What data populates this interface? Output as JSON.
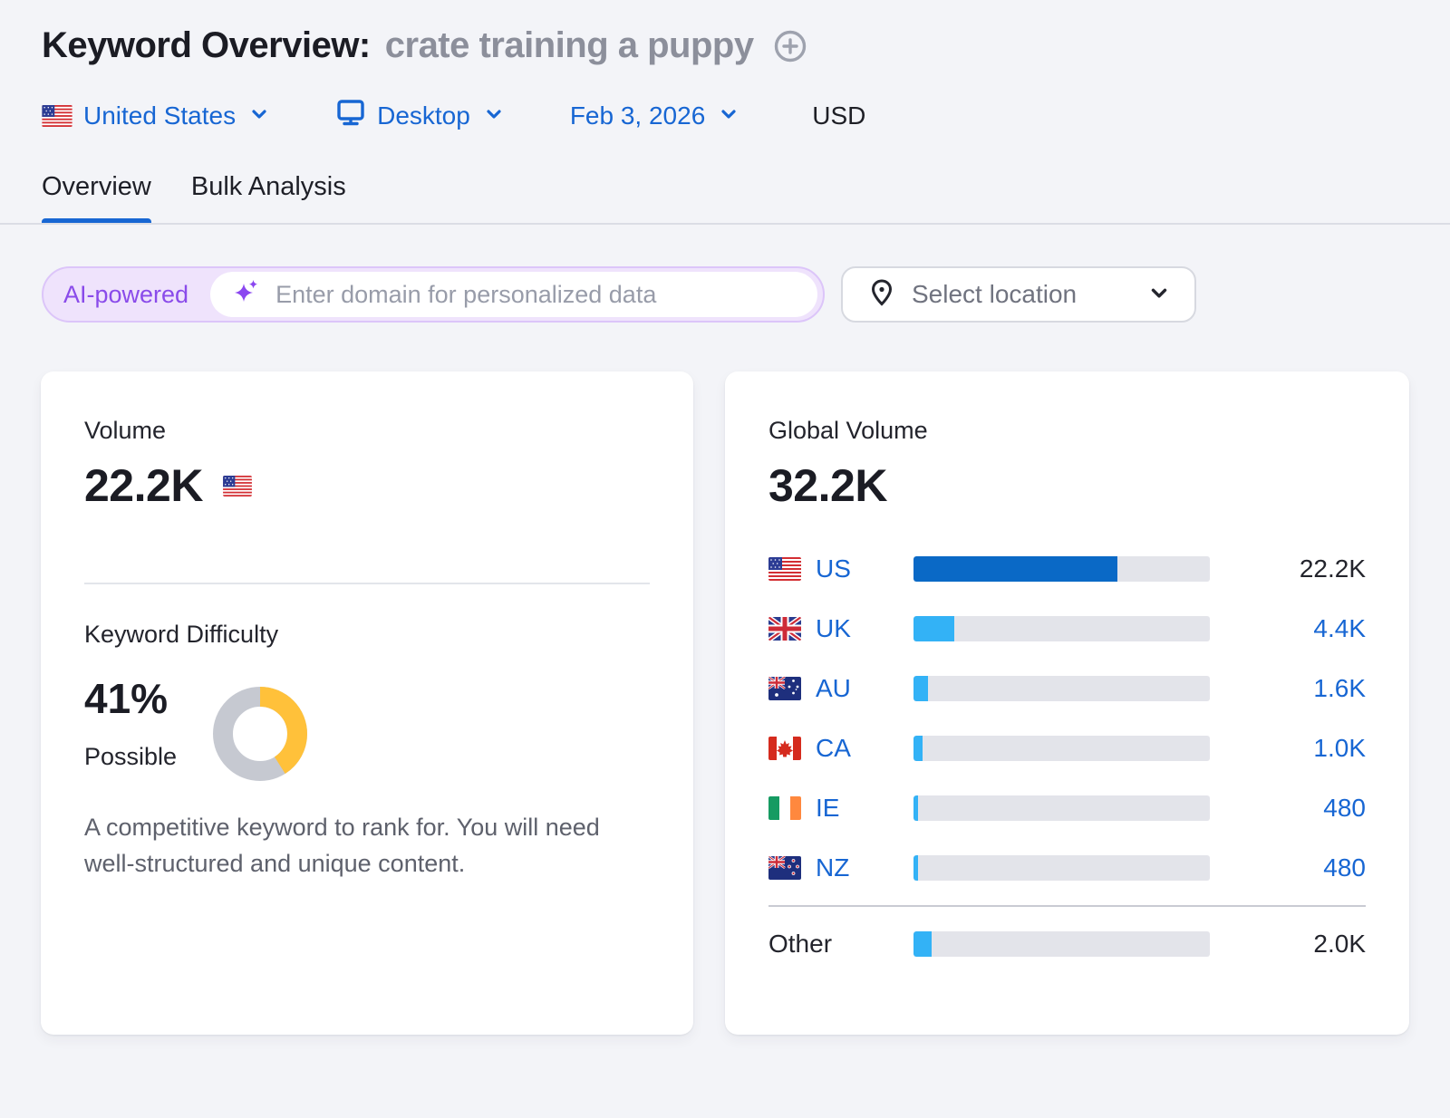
{
  "header": {
    "title": "Keyword Overview:",
    "keyword": "crate training a puppy",
    "filters": {
      "country": "United States",
      "device": "Desktop",
      "date": "Feb 3, 2026",
      "currency": "USD"
    },
    "tabs": [
      {
        "label": "Overview",
        "active": true
      },
      {
        "label": "Bulk Analysis",
        "active": false
      }
    ]
  },
  "controls": {
    "ai_badge": "AI-powered",
    "domain_placeholder": "Enter domain for personalized data",
    "domain_value": "",
    "location_button": "Select location"
  },
  "volume_card": {
    "label": "Volume",
    "value": "22.2K",
    "kd_label": "Keyword Difficulty",
    "kd_percent": "41%",
    "kd_percent_value": 41,
    "kd_level": "Possible",
    "kd_description": "A competitive keyword to rank for. You will need well-structured and unique content."
  },
  "global_volume_card": {
    "label": "Global Volume",
    "value": "32.2K",
    "rows": [
      {
        "code": "US",
        "value": "22.2K",
        "pct": 68.9,
        "flag": "us",
        "emphasis": true
      },
      {
        "code": "UK",
        "value": "4.4K",
        "pct": 13.7,
        "flag": "uk",
        "emphasis": false
      },
      {
        "code": "AU",
        "value": "1.6K",
        "pct": 5.0,
        "flag": "au",
        "emphasis": false
      },
      {
        "code": "CA",
        "value": "1.0K",
        "pct": 3.1,
        "flag": "ca",
        "emphasis": false
      },
      {
        "code": "IE",
        "value": "480",
        "pct": 1.5,
        "flag": "ie",
        "emphasis": false
      },
      {
        "code": "NZ",
        "value": "480",
        "pct": 1.5,
        "flag": "nz",
        "emphasis": false
      },
      {
        "code": "Other",
        "value": "2.0K",
        "pct": 6.2,
        "flag": null,
        "emphasis": false
      }
    ]
  },
  "colors": {
    "accent_blue": "#1766D3",
    "bar_primary": "#0A69C6",
    "bar_secondary": "#33B2F6",
    "bar_track": "#E3E4EA",
    "kd_yellow": "#FFC13A",
    "kd_gray": "#C6C9D1",
    "ai_purple": "#8A4BEA",
    "ai_bg": "#EFE3FC",
    "page_bg": "#F3F4F8"
  }
}
